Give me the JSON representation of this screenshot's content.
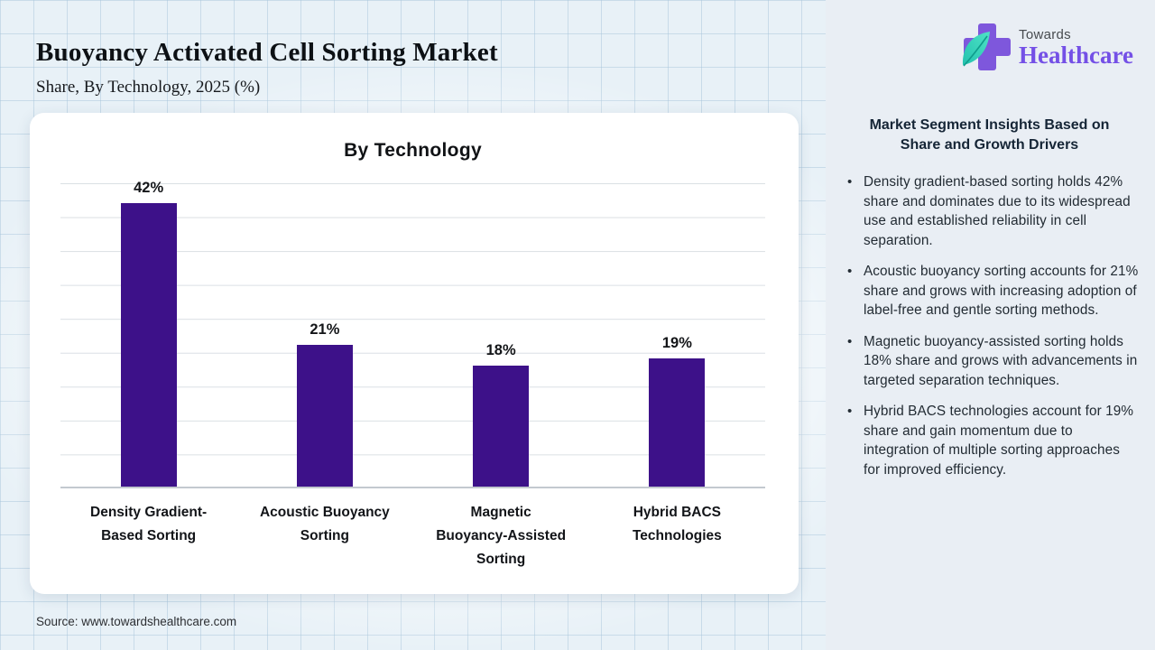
{
  "page": {
    "title": "Buoyancy Activated Cell Sorting Market",
    "subtitle": "Share, By Technology, 2025 (%)",
    "source": "Source: www.towardshealthcare.com"
  },
  "logo": {
    "brand_top": "Towards",
    "brand_bottom": "Healthcare",
    "cross_color": "#7e57dc",
    "leaf_color_start": "#4fe3c6",
    "leaf_color_end": "#23c2ae",
    "text_color": "#7450e6"
  },
  "chart_data": {
    "type": "bar",
    "title": "By Technology",
    "categories": [
      "Density Gradient-Based Sorting",
      "Acoustic Buoyancy Sorting",
      "Magnetic Buoyancy-Assisted Sorting",
      "Hybrid BACS Technologies"
    ],
    "category_labels": [
      "Density Gradient-\nBased Sorting",
      "Acoustic Buoyancy\nSorting",
      "Magnetic\nBuoyancy-Assisted\nSorting",
      "Hybrid BACS\nTechnologies"
    ],
    "values": [
      42,
      21,
      18,
      19
    ],
    "value_labels": [
      "42%",
      "21%",
      "18%",
      "19%"
    ],
    "unit": "%",
    "bar_color": "#3D1189",
    "ylim": [
      0,
      45
    ],
    "gridline_step": 5,
    "grid": "horizontal gridlines, no y-axis tick labels",
    "legend": "none",
    "xlabel": "",
    "ylabel": ""
  },
  "insights": {
    "heading": "Market Segment Insights Based on\nShare and Growth Drivers",
    "bullets": [
      "Density gradient-based sorting holds 42% share and dominates due to its widespread use and established reliability in cell separation.",
      "Acoustic buoyancy sorting accounts for 21% share and grows with increasing adoption of label-free and gentle sorting methods.",
      "Magnetic buoyancy-assisted sorting holds 18% share and grows with advancements in targeted separation techniques.",
      "Hybrid BACS technologies account for 19% share and gain momentum due to integration of multiple sorting approaches for improved efficiency."
    ]
  }
}
